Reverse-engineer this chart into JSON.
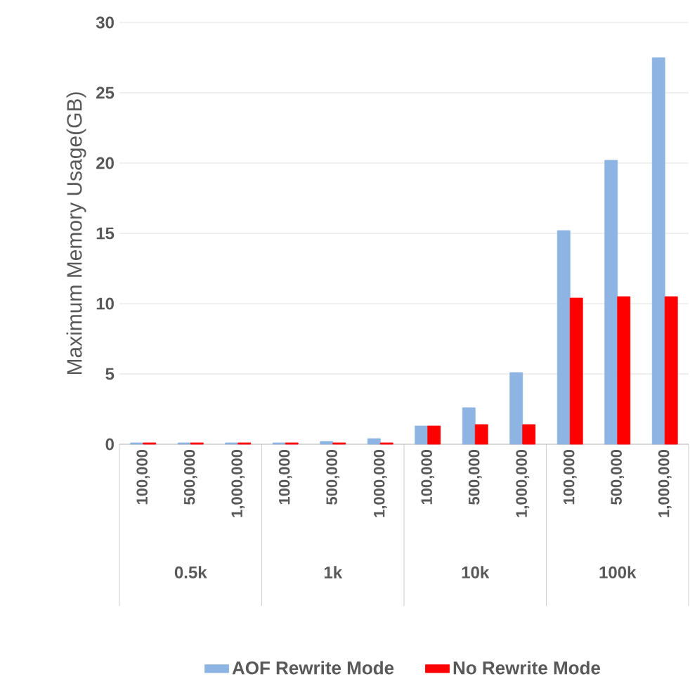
{
  "chart_data": {
    "type": "bar",
    "ylabel": "Maximum Memory Usage(GB)",
    "categories": [
      "100,000",
      "500,000",
      "1,000,000",
      "100,000",
      "500,000",
      "1,000,000",
      "100,000",
      "500,000",
      "1,000,000",
      "100,000",
      "500,000",
      "1,000,000"
    ],
    "annotations": [
      "0.5k",
      "1k",
      "10k",
      "100k"
    ],
    "series": [
      {
        "name": "AOF Rewrite Mode",
        "color": "#8db4e2",
        "values": [
          0.1,
          0.1,
          0.1,
          0.1,
          0.2,
          0.4,
          1.3,
          2.6,
          5.1,
          15.2,
          20.2,
          27.5
        ]
      },
      {
        "name": "No Rewrite Mode",
        "color": "#ff0000",
        "values": [
          0.1,
          0.1,
          0.1,
          0.1,
          0.1,
          0.1,
          1.3,
          1.4,
          1.4,
          10.4,
          10.5,
          10.5
        ]
      }
    ],
    "ylim": [
      0,
      30
    ],
    "yticks": [
      0,
      5,
      10,
      15,
      20,
      25,
      30
    ],
    "grid": "y",
    "legend": "bottom"
  }
}
